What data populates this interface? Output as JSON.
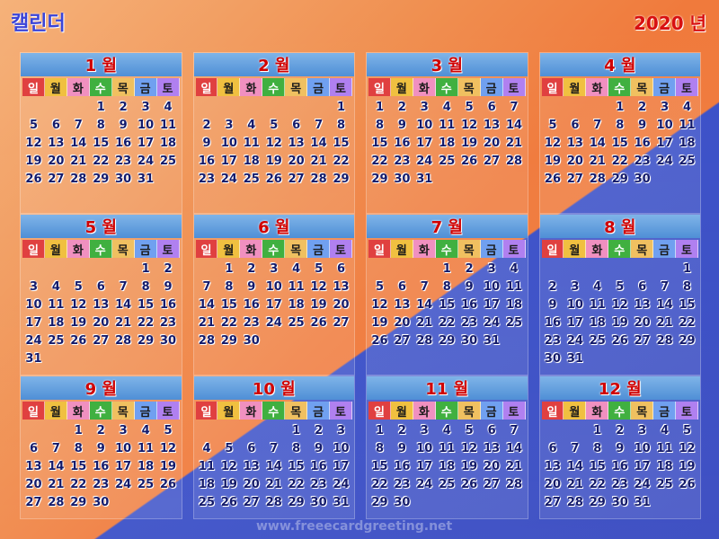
{
  "header": {
    "title": "캘린더",
    "year_label": "2020 년"
  },
  "weekdays": [
    "일",
    "월",
    "화",
    "수",
    "목",
    "금",
    "토"
  ],
  "months": [
    {
      "label": "1 월",
      "offset": 3,
      "days": 31
    },
    {
      "label": "2 월",
      "offset": 6,
      "days": 29
    },
    {
      "label": "3 월",
      "offset": 0,
      "days": 31
    },
    {
      "label": "4 월",
      "offset": 3,
      "days": 30
    },
    {
      "label": "5 월",
      "offset": 5,
      "days": 31
    },
    {
      "label": "6 월",
      "offset": 1,
      "days": 30
    },
    {
      "label": "7 월",
      "offset": 3,
      "days": 31
    },
    {
      "label": "8 월",
      "offset": 6,
      "days": 31
    },
    {
      "label": "9 월",
      "offset": 2,
      "days": 30
    },
    {
      "label": "10 월",
      "offset": 4,
      "days": 31
    },
    {
      "label": "11 월",
      "offset": 0,
      "days": 30
    },
    {
      "label": "12 월",
      "offset": 2,
      "days": 31
    }
  ],
  "watermark": "www.freeecardgreeting.net"
}
